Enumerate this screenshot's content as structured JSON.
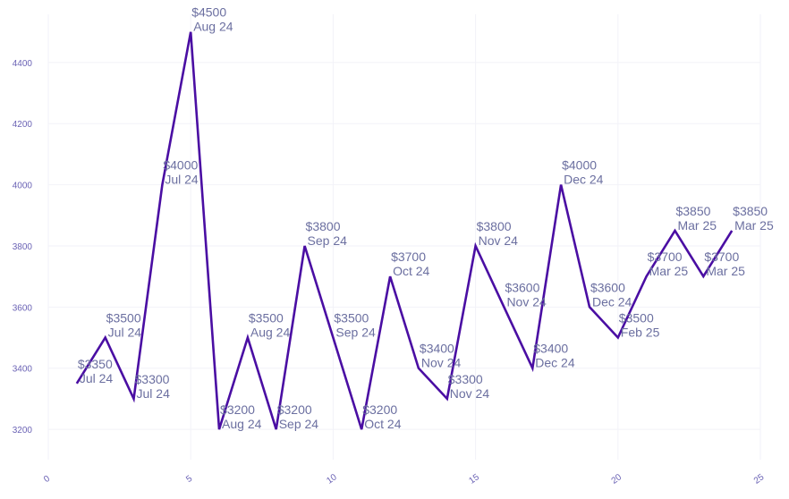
{
  "chart_data": {
    "type": "line",
    "title": "",
    "xlabel": "",
    "ylabel": "",
    "xlim": [
      0,
      25
    ],
    "ylim": [
      3130,
      4540
    ],
    "x_ticks": [
      "0",
      "5",
      "10",
      "15",
      "20",
      "25"
    ],
    "y_ticks": [
      "3200",
      "3400",
      "3600",
      "3800",
      "4000",
      "4200",
      "4400"
    ],
    "grid": true,
    "line_color": "#4a0ea3",
    "series": [
      {
        "name": "price",
        "points": [
          {
            "x": 1,
            "y": 3350,
            "price": "$3350",
            "month": "Jul 24"
          },
          {
            "x": 2,
            "y": 3500,
            "price": "$3500",
            "month": "Jul 24"
          },
          {
            "x": 3,
            "y": 3300,
            "price": "$3300",
            "month": "Jul 24"
          },
          {
            "x": 4,
            "y": 4000,
            "price": "$4000",
            "month": "Jul 24"
          },
          {
            "x": 5,
            "y": 4500,
            "price": "$4500",
            "month": "Aug 24"
          },
          {
            "x": 6,
            "y": 3200,
            "price": "$3200",
            "month": "Aug 24"
          },
          {
            "x": 7,
            "y": 3500,
            "price": "$3500",
            "month": "Aug 24"
          },
          {
            "x": 8,
            "y": 3200,
            "price": "$3200",
            "month": "Sep 24"
          },
          {
            "x": 9,
            "y": 3800,
            "price": "$3800",
            "month": "Sep 24"
          },
          {
            "x": 10,
            "y": 3500,
            "price": "$3500",
            "month": "Sep 24"
          },
          {
            "x": 11,
            "y": 3200,
            "price": "$3200",
            "month": "Oct 24"
          },
          {
            "x": 12,
            "y": 3700,
            "price": "$3700",
            "month": "Oct 24"
          },
          {
            "x": 13,
            "y": 3400,
            "price": "$3400",
            "month": "Nov 24"
          },
          {
            "x": 14,
            "y": 3300,
            "price": "$3300",
            "month": "Nov 24"
          },
          {
            "x": 15,
            "y": 3800,
            "price": "$3800",
            "month": "Nov 24"
          },
          {
            "x": 16,
            "y": 3600,
            "price": "$3600",
            "month": "Nov 24"
          },
          {
            "x": 17,
            "y": 3400,
            "price": "$3400",
            "month": "Dec 24"
          },
          {
            "x": 18,
            "y": 4000,
            "price": "$4000",
            "month": "Dec 24"
          },
          {
            "x": 19,
            "y": 3600,
            "price": "$3600",
            "month": "Dec 24"
          },
          {
            "x": 20,
            "y": 3500,
            "price": "$3500",
            "month": "Feb 25"
          },
          {
            "x": 21,
            "y": 3700,
            "price": "$3700",
            "month": "Mar 25"
          },
          {
            "x": 22,
            "y": 3850,
            "price": "$3850",
            "month": "Mar 25"
          },
          {
            "x": 23,
            "y": 3700,
            "price": "$3700",
            "month": "Mar 25"
          },
          {
            "x": 24,
            "y": 3850,
            "price": "$3850",
            "month": "Mar 25"
          }
        ]
      }
    ]
  }
}
